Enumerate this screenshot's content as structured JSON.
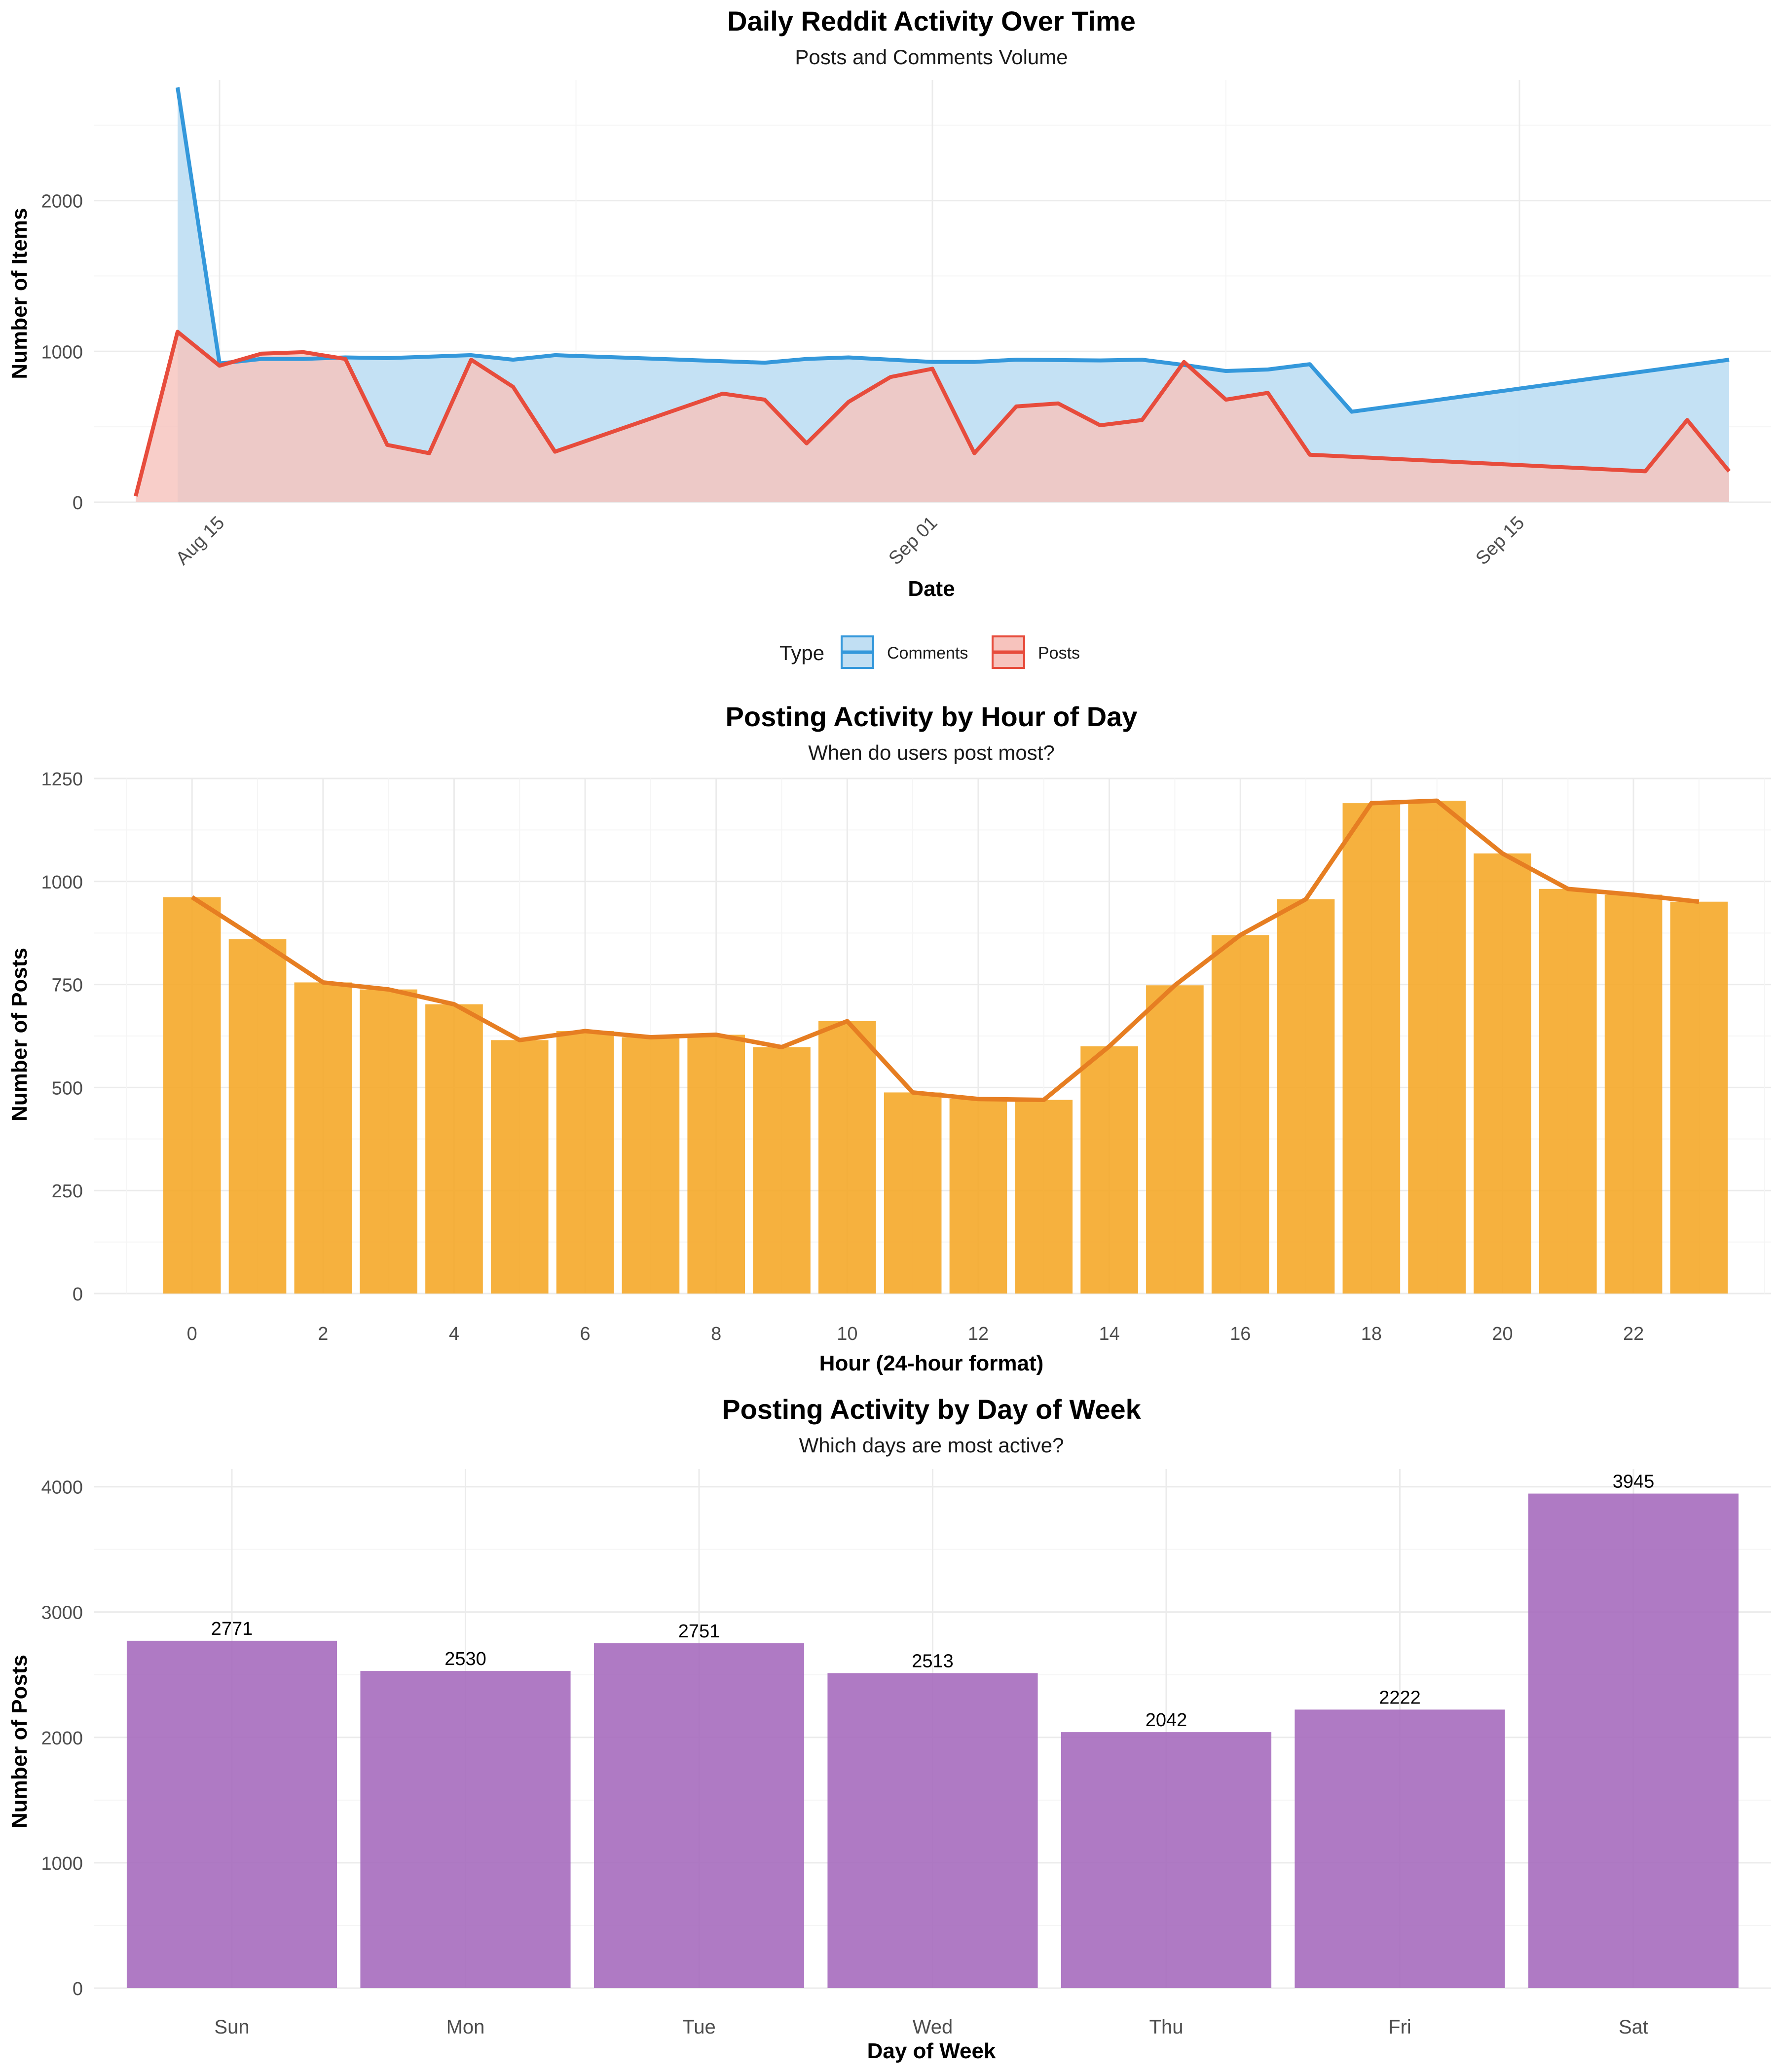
{
  "colors": {
    "comments": "#3498db",
    "comments_fill": "#c1dff3",
    "posts": "#e74c3c",
    "posts_fill": "#f7c3bd",
    "overlap_fill": "#c9b6c7",
    "hour_bar": "#f5a623",
    "hour_line": "#e67e22",
    "weekday_bar": "#a66bbe",
    "grid_major": "#ebebeb",
    "grid_minor": "#f5f5f5"
  },
  "legend": {
    "title": "Type",
    "items": [
      "Comments",
      "Posts"
    ]
  },
  "chart_data": [
    {
      "type": "area",
      "title": "Daily Reddit Activity Over Time",
      "subtitle": "Posts and Comments Volume",
      "xlabel": "Date",
      "ylabel": "Number of Items",
      "x_tick_labels": [
        "Aug 15",
        "Sep 01",
        "Sep 15"
      ],
      "x_tick_dates": [
        "2023-08-15",
        "2023-09-01",
        "2023-09-15"
      ],
      "y_ticks": [
        0,
        1000,
        2000
      ],
      "ylim": [
        0,
        2800
      ],
      "xlim": [
        "2023-08-12",
        "2023-09-21"
      ],
      "grid": true,
      "legend_position": "bottom",
      "series": [
        {
          "name": "Comments",
          "points": [
            [
              "2023-08-14",
              2750
            ],
            [
              "2023-08-15",
              920
            ],
            [
              "2023-08-16",
              950
            ],
            [
              "2023-08-17",
              950
            ],
            [
              "2023-08-18",
              960
            ],
            [
              "2023-08-19",
              955
            ],
            [
              "2023-08-21",
              975
            ],
            [
              "2023-08-22",
              945
            ],
            [
              "2023-08-23",
              975
            ],
            [
              "2023-08-28",
              925
            ],
            [
              "2023-08-29",
              950
            ],
            [
              "2023-08-30",
              960
            ],
            [
              "2023-09-01",
              930
            ],
            [
              "2023-09-02",
              930
            ],
            [
              "2023-09-03",
              945
            ],
            [
              "2023-09-05",
              940
            ],
            [
              "2023-09-06",
              945
            ],
            [
              "2023-09-07",
              910
            ],
            [
              "2023-09-08",
              870
            ],
            [
              "2023-09-09",
              880
            ],
            [
              "2023-09-10",
              915
            ],
            [
              "2023-09-11",
              600
            ],
            [
              "2023-09-20",
              945
            ]
          ]
        },
        {
          "name": "Posts",
          "points": [
            [
              "2023-08-13",
              40
            ],
            [
              "2023-08-14",
              1130
            ],
            [
              "2023-08-15",
              905
            ],
            [
              "2023-08-16",
              985
            ],
            [
              "2023-08-17",
              995
            ],
            [
              "2023-08-18",
              950
            ],
            [
              "2023-08-19",
              380
            ],
            [
              "2023-08-20",
              325
            ],
            [
              "2023-08-21",
              945
            ],
            [
              "2023-08-22",
              765
            ],
            [
              "2023-08-23",
              335
            ],
            [
              "2023-08-27",
              720
            ],
            [
              "2023-08-28",
              680
            ],
            [
              "2023-08-29",
              390
            ],
            [
              "2023-08-30",
              665
            ],
            [
              "2023-08-31",
              830
            ],
            [
              "2023-09-01",
              885
            ],
            [
              "2023-09-02",
              325
            ],
            [
              "2023-09-03",
              635
            ],
            [
              "2023-09-04",
              655
            ],
            [
              "2023-09-05",
              510
            ],
            [
              "2023-09-06",
              545
            ],
            [
              "2023-09-07",
              930
            ],
            [
              "2023-09-08",
              680
            ],
            [
              "2023-09-09",
              725
            ],
            [
              "2023-09-10",
              315
            ],
            [
              "2023-09-18",
              205
            ],
            [
              "2023-09-19",
              545
            ],
            [
              "2023-09-20",
              205
            ]
          ]
        }
      ]
    },
    {
      "type": "bar",
      "title": "Posting Activity by Hour of Day",
      "subtitle": "When do users post most?",
      "xlabel": "Hour (24-hour format)",
      "ylabel": "Number of Posts",
      "categories": [
        0,
        1,
        2,
        3,
        4,
        5,
        6,
        7,
        8,
        9,
        10,
        11,
        12,
        13,
        14,
        15,
        16,
        17,
        18,
        19,
        20,
        21,
        22,
        23
      ],
      "values": [
        962,
        860,
        755,
        738,
        702,
        615,
        637,
        622,
        628,
        598,
        661,
        488,
        472,
        470,
        600,
        748,
        870,
        957,
        1190,
        1196,
        1068,
        982,
        968,
        951
      ],
      "x_tick_labels": [
        "0",
        "2",
        "4",
        "6",
        "8",
        "10",
        "12",
        "14",
        "16",
        "18",
        "20",
        "22"
      ],
      "y_ticks": [
        0,
        250,
        500,
        750,
        1000,
        1250
      ],
      "ylim": [
        0,
        1250
      ],
      "overlay_line": true,
      "grid": true
    },
    {
      "type": "bar",
      "title": "Posting Activity by Day of Week",
      "subtitle": "Which days are most active?",
      "xlabel": "Day of Week",
      "ylabel": "Number of Posts",
      "categories": [
        "Sun",
        "Mon",
        "Tue",
        "Wed",
        "Thu",
        "Fri",
        "Sat"
      ],
      "values": [
        2771,
        2530,
        2751,
        2513,
        2042,
        2222,
        3945
      ],
      "data_labels": [
        "2771",
        "2530",
        "2751",
        "2513",
        "2042",
        "2222",
        "3945"
      ],
      "y_ticks": [
        0,
        1000,
        2000,
        3000,
        4000
      ],
      "ylim": [
        0,
        4140
      ],
      "grid": true
    }
  ]
}
